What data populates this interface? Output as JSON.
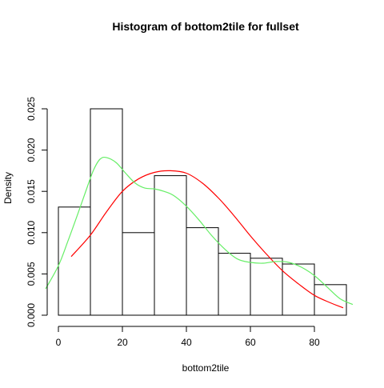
{
  "chart_data": {
    "type": "bar",
    "title": "Histogram of bottom2tile for fullset",
    "xlabel": "bottom2tile",
    "ylabel": "Density",
    "xlim": [
      0,
      90
    ],
    "ylim": [
      0,
      0.025
    ],
    "x_ticks": [
      "0",
      "20",
      "40",
      "60",
      "80"
    ],
    "y_ticks": [
      "0.000",
      "0.005",
      "0.010",
      "0.015",
      "0.020",
      "0.025"
    ],
    "bins": [
      {
        "from": 0,
        "to": 10,
        "density": 0.0131
      },
      {
        "from": 10,
        "to": 20,
        "density": 0.025
      },
      {
        "from": 20,
        "to": 30,
        "density": 0.01
      },
      {
        "from": 30,
        "to": 40,
        "density": 0.0169
      },
      {
        "from": 40,
        "to": 50,
        "density": 0.0106
      },
      {
        "from": 50,
        "to": 60,
        "density": 0.0075
      },
      {
        "from": 60,
        "to": 70,
        "density": 0.0069
      },
      {
        "from": 70,
        "to": 80,
        "density": 0.0062
      },
      {
        "from": 80,
        "to": 90,
        "density": 0.0037
      }
    ],
    "curves": [
      {
        "color": "#ff0000",
        "points": [
          [
            4,
            0.0071
          ],
          [
            10,
            0.0097
          ],
          [
            15,
            0.0125
          ],
          [
            20,
            0.015
          ],
          [
            25,
            0.0165
          ],
          [
            30,
            0.0173
          ],
          [
            35,
            0.0175
          ],
          [
            40,
            0.0172
          ],
          [
            45,
            0.016
          ],
          [
            50,
            0.0142
          ],
          [
            55,
            0.012
          ],
          [
            60,
            0.0096
          ],
          [
            65,
            0.0074
          ],
          [
            70,
            0.0054
          ],
          [
            75,
            0.0038
          ],
          [
            80,
            0.0024
          ],
          [
            85,
            0.0015
          ],
          [
            89,
            0.0009
          ]
        ]
      },
      {
        "color": "#66ee66",
        "points": [
          [
            -4,
            0.0032
          ],
          [
            0,
            0.006
          ],
          [
            3,
            0.009
          ],
          [
            6,
            0.0122
          ],
          [
            9,
            0.0155
          ],
          [
            11,
            0.0176
          ],
          [
            13,
            0.0189
          ],
          [
            15,
            0.0191
          ],
          [
            18,
            0.0185
          ],
          [
            21,
            0.0172
          ],
          [
            24,
            0.016
          ],
          [
            27,
            0.0154
          ],
          [
            30,
            0.0153
          ],
          [
            33,
            0.015
          ],
          [
            36,
            0.0145
          ],
          [
            40,
            0.0132
          ],
          [
            44,
            0.0115
          ],
          [
            48,
            0.0096
          ],
          [
            52,
            0.008
          ],
          [
            56,
            0.0068
          ],
          [
            60,
            0.0064
          ],
          [
            64,
            0.0063
          ],
          [
            68,
            0.0065
          ],
          [
            72,
            0.0064
          ],
          [
            76,
            0.0058
          ],
          [
            80,
            0.0048
          ],
          [
            84,
            0.0034
          ],
          [
            88,
            0.002
          ],
          [
            92,
            0.0013
          ]
        ]
      }
    ]
  }
}
